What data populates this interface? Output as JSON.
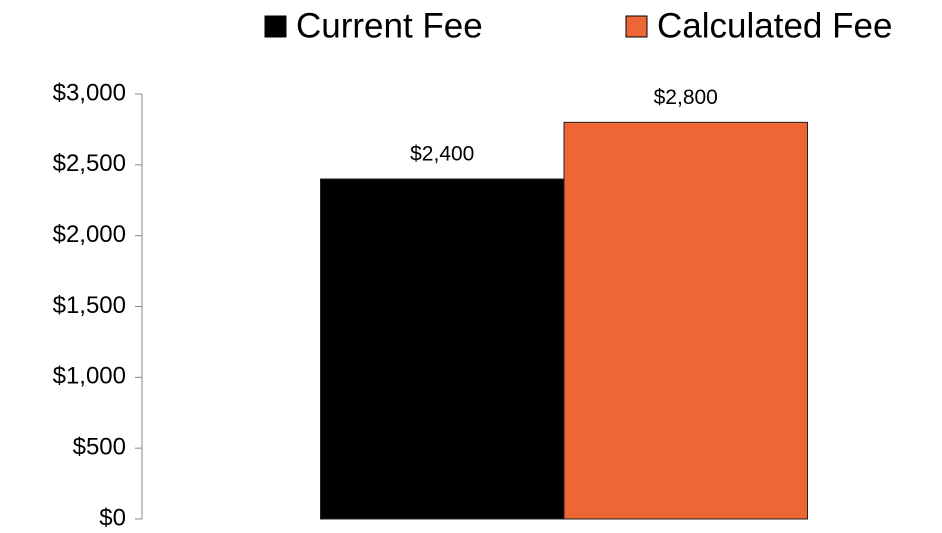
{
  "chart_data": {
    "type": "bar",
    "categories": [
      null
    ],
    "series": [
      {
        "name": "Current Fee",
        "color": "#000000",
        "values": [
          2400
        ],
        "value_labels": [
          "$2,400"
        ]
      },
      {
        "name": "Calculated Fee",
        "color": "#ee6633",
        "values": [
          2800
        ],
        "value_labels": [
          "$2,800"
        ]
      }
    ],
    "ylim": [
      0,
      3000
    ],
    "yticks": [
      {
        "value": 0,
        "label": "$0"
      },
      {
        "value": 500,
        "label": "$500"
      },
      {
        "value": 1000,
        "label": "$1,000"
      },
      {
        "value": 1500,
        "label": "$1,500"
      },
      {
        "value": 2000,
        "label": "$2,000"
      },
      {
        "value": 2500,
        "label": "$2,500"
      },
      {
        "value": 3000,
        "label": "$3,000"
      }
    ],
    "legend": "top",
    "grid": false
  }
}
